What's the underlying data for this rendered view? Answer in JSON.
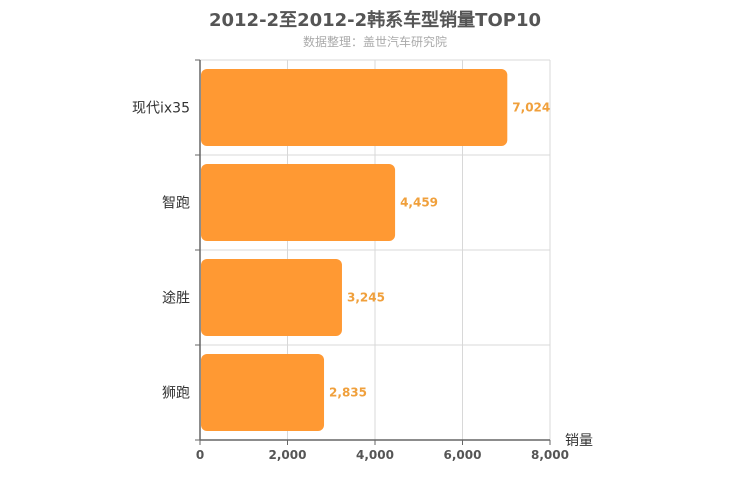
{
  "chart_data": {
    "type": "bar",
    "orientation": "horizontal",
    "title": "2012-2至2012-2韩系车型销量TOP10",
    "subtitle": "数据整理：盖世汽车研究院",
    "xlabel": "销量",
    "ylabel": "",
    "categories": [
      "现代ix35",
      "智跑",
      "途胜",
      "狮跑"
    ],
    "values": [
      7024,
      4459,
      3245,
      2835
    ],
    "value_labels": [
      "7,024",
      "4,459",
      "3,245",
      "2,835"
    ],
    "xlim": [
      0,
      8000
    ],
    "x_ticks": [
      0,
      2000,
      4000,
      6000,
      8000
    ],
    "x_tick_labels": [
      "0",
      "2,000",
      "4,000",
      "6,000",
      "8,000"
    ],
    "grid": true,
    "legend": "none",
    "colors": {
      "bar": "#ff9933",
      "value_label": "#f0a03c",
      "title": "#555555",
      "subtitle": "#aaaaaa",
      "axis": "#666666",
      "grid": "#d8d8d8"
    }
  }
}
